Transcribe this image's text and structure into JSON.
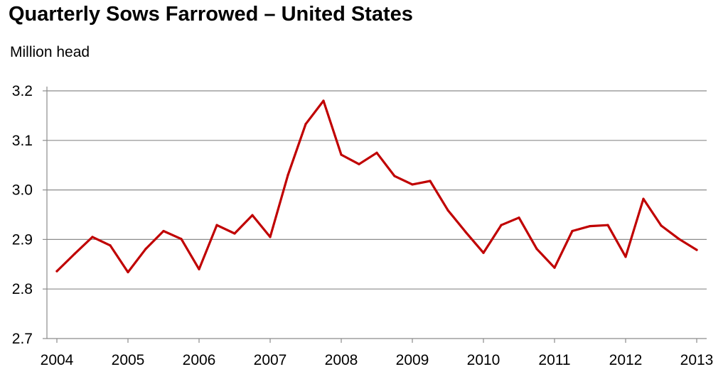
{
  "chart_data": {
    "type": "line",
    "title": "Quarterly Sows Farrowed – United States",
    "ylabel": "Million head",
    "xlabel": "",
    "ylim": [
      2.7,
      3.2
    ],
    "yticks": [
      "3.2",
      "3.1",
      "3.0",
      "2.9",
      "2.8",
      "2.7"
    ],
    "ytick_values": [
      3.2,
      3.1,
      3.0,
      2.9,
      2.8,
      2.7
    ],
    "xticks": [
      "2004",
      "2005",
      "2006",
      "2007",
      "2008",
      "2009",
      "2010",
      "2011",
      "2012",
      "2013"
    ],
    "xlim": [
      2004,
      2013
    ],
    "grid": true,
    "line_color": "#c00000",
    "series": [
      {
        "x": [
          2004.0,
          2004.25,
          2004.5,
          2004.75,
          2005.0,
          2005.25,
          2005.5,
          2005.75,
          2006.0,
          2006.25,
          2006.5,
          2006.75,
          2007.0,
          2007.25,
          2007.5,
          2007.75,
          2008.0,
          2008.25,
          2008.5,
          2008.75,
          2009.0,
          2009.25,
          2009.5,
          2009.75,
          2010.0,
          2010.25,
          2010.5,
          2010.75,
          2011.0,
          2011.25,
          2011.5,
          2011.75,
          2012.0,
          2012.25,
          2012.5,
          2012.75,
          2013.0
        ],
        "values": [
          2.836,
          2.871,
          2.905,
          2.888,
          2.834,
          2.881,
          2.917,
          2.901,
          2.84,
          2.929,
          2.912,
          2.949,
          2.905,
          3.03,
          3.133,
          3.18,
          3.071,
          3.052,
          3.075,
          3.028,
          3.011,
          3.018,
          2.959,
          2.915,
          2.873,
          2.929,
          2.944,
          2.881,
          2.843,
          2.917,
          2.927,
          2.929,
          2.865,
          2.982,
          2.928,
          2.901,
          2.879
        ]
      }
    ]
  }
}
